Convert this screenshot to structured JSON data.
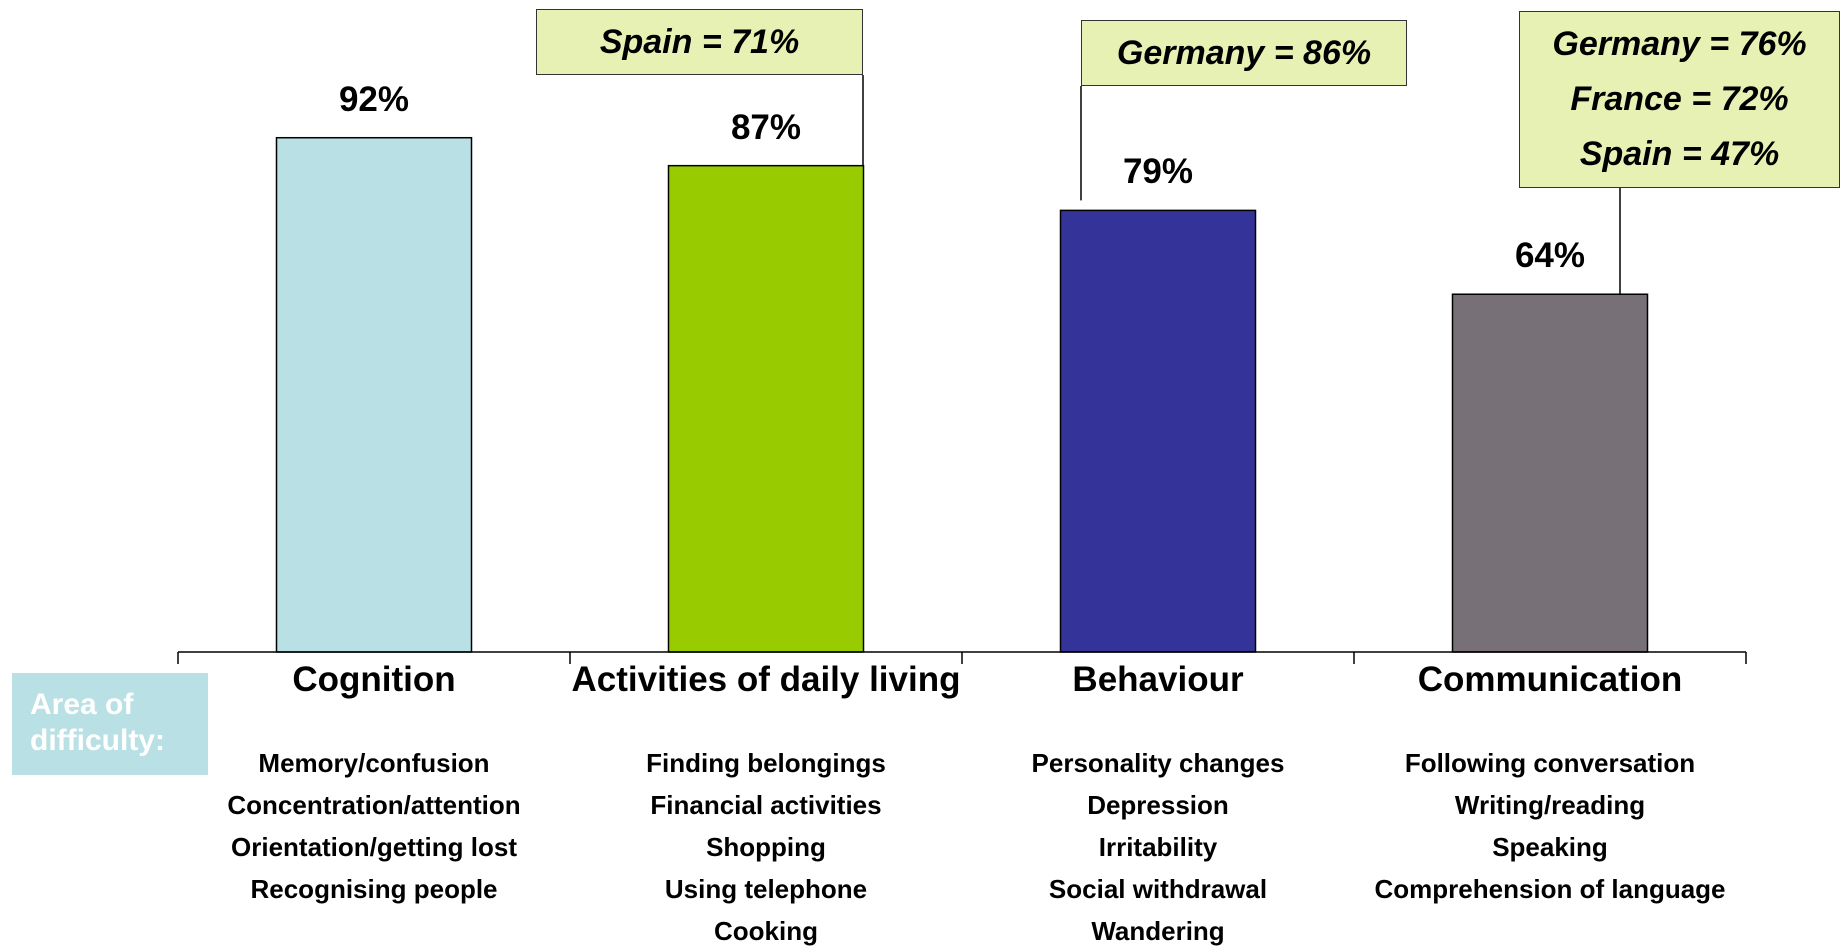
{
  "chart_data": {
    "type": "bar",
    "categories": [
      "Cognition",
      "Activities of daily living",
      "Behaviour",
      "Communication"
    ],
    "values": [
      92,
      87,
      79,
      64
    ],
    "value_labels": [
      "92%",
      "87%",
      "79%",
      "64%"
    ],
    "colors": [
      "#b9e0e4",
      "#99cc00",
      "#333399",
      "#777077"
    ],
    "ylim": [
      0,
      100
    ],
    "axis_label": "Area of difficulty:",
    "items": [
      [
        "Memory/confusion",
        "Concentration/attention",
        "Orientation/getting lost",
        "Recognising people"
      ],
      [
        "Finding belongings",
        "Financial activities",
        "Shopping",
        "Using telephone",
        "Cooking"
      ],
      [
        "Personality changes",
        "Depression",
        "Irritability",
        "Social withdrawal",
        "Wandering"
      ],
      [
        "Following conversation",
        "Writing/reading",
        "Speaking",
        "Comprehension of language"
      ]
    ],
    "annotations": [
      {
        "lines": [
          "Spain = 71%"
        ]
      },
      {
        "lines": [
          "Germany = 86%"
        ]
      },
      {
        "lines": [
          "Germany = 76%",
          "France = 72%",
          "Spain = 47%"
        ]
      }
    ]
  }
}
